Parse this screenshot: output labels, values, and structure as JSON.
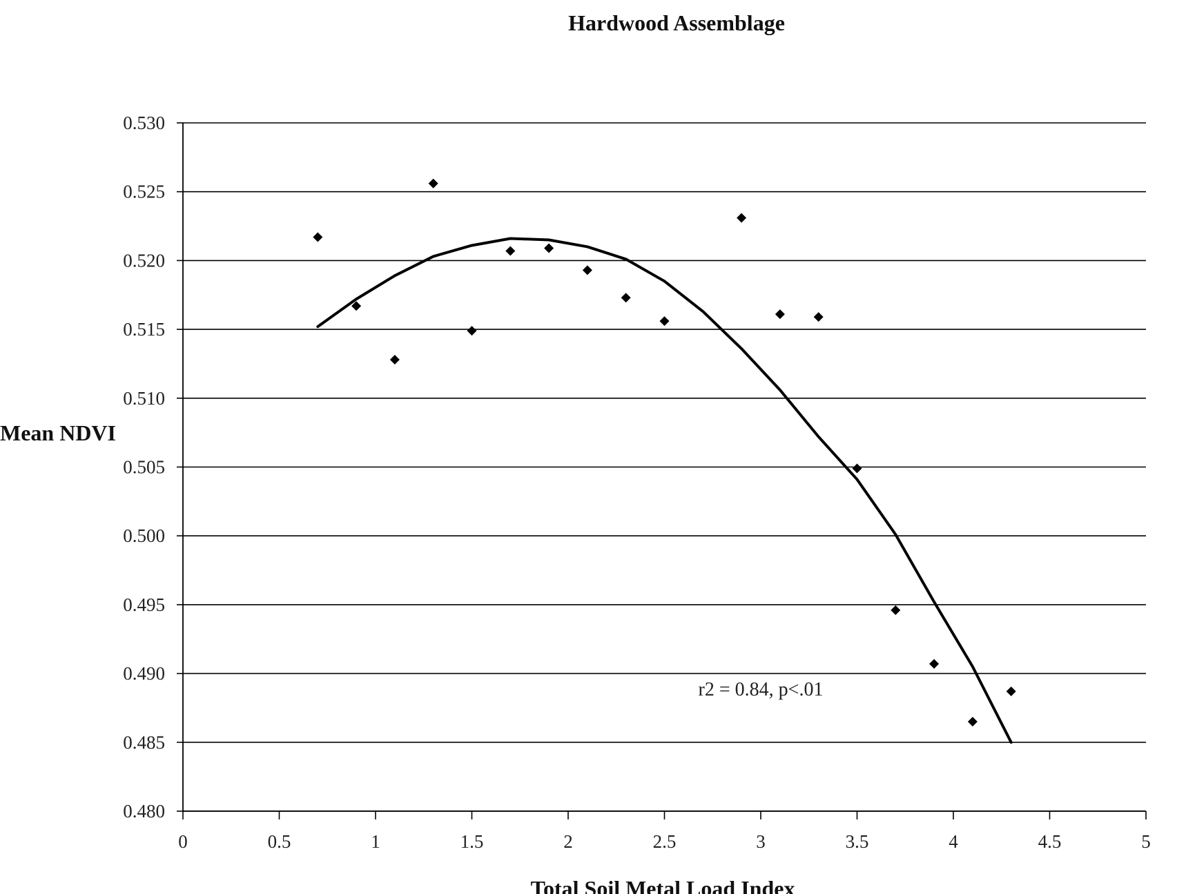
{
  "chart_data": {
    "type": "scatter",
    "title": "Hardwood Assemblage",
    "xlabel": "Total Soil Metal Load Index",
    "ylabel": "Mean NDVI",
    "xlim": [
      0,
      5
    ],
    "ylim": [
      0.48,
      0.53
    ],
    "x_ticks": [
      "0",
      "0.5",
      "1",
      "1.5",
      "2",
      "2.5",
      "3",
      "3.5",
      "4",
      "4.5",
      "5"
    ],
    "y_ticks": [
      "0.480",
      "0.485",
      "0.490",
      "0.495",
      "0.500",
      "0.505",
      "0.510",
      "0.515",
      "0.520",
      "0.525",
      "0.530"
    ],
    "grid": {
      "horizontal": true,
      "vertical": false
    },
    "marker": "diamond",
    "colors": {
      "axis": "#000000",
      "grid": "#000000",
      "points": "#000000",
      "trend": "#000000"
    },
    "points": [
      {
        "x": 0.7,
        "y": 0.5217
      },
      {
        "x": 0.9,
        "y": 0.5167
      },
      {
        "x": 1.1,
        "y": 0.5128
      },
      {
        "x": 1.3,
        "y": 0.5256
      },
      {
        "x": 1.5,
        "y": 0.5149
      },
      {
        "x": 1.7,
        "y": 0.5207
      },
      {
        "x": 1.9,
        "y": 0.5209
      },
      {
        "x": 2.1,
        "y": 0.5193
      },
      {
        "x": 2.3,
        "y": 0.5173
      },
      {
        "x": 2.5,
        "y": 0.5156
      },
      {
        "x": 2.9,
        "y": 0.5231
      },
      {
        "x": 3.1,
        "y": 0.5161
      },
      {
        "x": 3.3,
        "y": 0.5159
      },
      {
        "x": 3.5,
        "y": 0.5049
      },
      {
        "x": 3.7,
        "y": 0.4946
      },
      {
        "x": 3.9,
        "y": 0.4907
      },
      {
        "x": 4.1,
        "y": 0.4865
      },
      {
        "x": 4.3,
        "y": 0.4887
      }
    ],
    "trend_curve": [
      {
        "x": 0.7,
        "y": 0.5152
      },
      {
        "x": 0.9,
        "y": 0.5172
      },
      {
        "x": 1.1,
        "y": 0.5189
      },
      {
        "x": 1.3,
        "y": 0.5203
      },
      {
        "x": 1.5,
        "y": 0.5211
      },
      {
        "x": 1.7,
        "y": 0.5216
      },
      {
        "x": 1.9,
        "y": 0.5215
      },
      {
        "x": 2.1,
        "y": 0.521
      },
      {
        "x": 2.3,
        "y": 0.5201
      },
      {
        "x": 2.5,
        "y": 0.5185
      },
      {
        "x": 2.7,
        "y": 0.5163
      },
      {
        "x": 2.9,
        "y": 0.5136
      },
      {
        "x": 3.1,
        "y": 0.5106
      },
      {
        "x": 3.3,
        "y": 0.5072
      },
      {
        "x": 3.5,
        "y": 0.5041
      },
      {
        "x": 3.7,
        "y": 0.5001
      },
      {
        "x": 3.9,
        "y": 0.4952
      },
      {
        "x": 4.1,
        "y": 0.4905
      },
      {
        "x": 4.3,
        "y": 0.485
      }
    ],
    "annotation": {
      "text": "r2 = 0.84, p<.01",
      "x": 2.5,
      "y": 0.4889
    }
  }
}
